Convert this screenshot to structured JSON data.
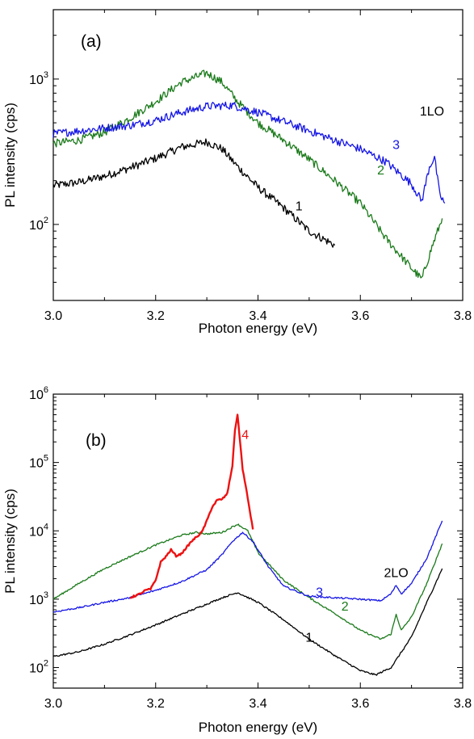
{
  "colors": {
    "axis": "#000000",
    "series_1": "#000000",
    "series_2": "#1a7a1a",
    "series_3": "#1515e6",
    "series_4": "#ee1111"
  },
  "chart_data": [
    {
      "type": "line",
      "panel_label": "(a)",
      "xlabel": "Photon energy (eV)",
      "ylabel": "PL intensity (cps)",
      "xlim": [
        3.0,
        3.8
      ],
      "ylim": [
        30,
        3000
      ],
      "yscale": "log",
      "grid": false,
      "xticks": [
        "3.0",
        "3.2",
        "3.4",
        "3.6",
        "3.8"
      ],
      "yticks": [
        {
          "base": "10",
          "exp": "2"
        },
        {
          "base": "10",
          "exp": "3"
        }
      ],
      "annotations": [
        {
          "text": "1LO",
          "x": 3.74,
          "y": 560,
          "series": "3"
        }
      ],
      "series": [
        {
          "name": "1",
          "label_at": {
            "x": 3.48,
            "y": 125
          },
          "x": [
            3.0,
            3.05,
            3.1,
            3.15,
            3.2,
            3.25,
            3.3,
            3.33,
            3.36,
            3.4,
            3.45,
            3.5,
            3.55
          ],
          "y": [
            185,
            195,
            215,
            245,
            285,
            340,
            370,
            330,
            250,
            180,
            130,
            90,
            72
          ]
        },
        {
          "name": "2",
          "label_at": {
            "x": 3.64,
            "y": 220
          },
          "x": [
            3.0,
            3.05,
            3.1,
            3.15,
            3.2,
            3.25,
            3.3,
            3.33,
            3.36,
            3.4,
            3.45,
            3.5,
            3.55,
            3.6,
            3.65,
            3.7,
            3.72,
            3.74,
            3.76
          ],
          "y": [
            360,
            380,
            430,
            540,
            700,
            950,
            1100,
            950,
            700,
            500,
            380,
            280,
            200,
            140,
            80,
            50,
            42,
            70,
            110
          ]
        },
        {
          "name": "3",
          "label_at": {
            "x": 3.67,
            "y": 330
          },
          "x": [
            3.0,
            3.05,
            3.1,
            3.15,
            3.2,
            3.25,
            3.3,
            3.35,
            3.4,
            3.45,
            3.5,
            3.55,
            3.6,
            3.65,
            3.7,
            3.72,
            3.735,
            3.745,
            3.755,
            3.765
          ],
          "y": [
            420,
            440,
            460,
            480,
            520,
            590,
            650,
            660,
            590,
            510,
            440,
            380,
            330,
            270,
            190,
            145,
            250,
            290,
            160,
            140
          ]
        }
      ]
    },
    {
      "type": "line",
      "panel_label": "(b)",
      "xlabel": "Photon energy (eV)",
      "ylabel": "PL intensity (cps)",
      "xlim": [
        3.0,
        3.8
      ],
      "ylim": [
        50,
        1000000
      ],
      "yscale": "log",
      "grid": false,
      "xticks": [
        "3.0",
        "3.2",
        "3.4",
        "3.6",
        "3.8"
      ],
      "yticks": [
        {
          "base": "10",
          "exp": "2"
        },
        {
          "base": "10",
          "exp": "3"
        },
        {
          "base": "10",
          "exp": "4"
        },
        {
          "base": "10",
          "exp": "5"
        },
        {
          "base": "10",
          "exp": "6"
        }
      ],
      "annotations": [
        {
          "text": "2LO",
          "x": 3.67,
          "y": 2100,
          "series": "3"
        }
      ],
      "series": [
        {
          "name": "1",
          "label_at": {
            "x": 3.5,
            "y": 240
          },
          "x": [
            3.0,
            3.05,
            3.1,
            3.15,
            3.2,
            3.25,
            3.3,
            3.33,
            3.36,
            3.4,
            3.45,
            3.5,
            3.55,
            3.6,
            3.63,
            3.66,
            3.7,
            3.73,
            3.76
          ],
          "y": [
            145,
            170,
            220,
            300,
            420,
            600,
            850,
            1050,
            1250,
            900,
            500,
            260,
            150,
            90,
            78,
            100,
            280,
            900,
            2800
          ]
        },
        {
          "name": "2",
          "label_at": {
            "x": 3.57,
            "y": 680
          },
          "x": [
            3.0,
            3.05,
            3.1,
            3.15,
            3.2,
            3.25,
            3.28,
            3.3,
            3.33,
            3.36,
            3.38,
            3.4,
            3.45,
            3.5,
            3.55,
            3.6,
            3.64,
            3.66,
            3.67,
            3.68,
            3.7,
            3.73,
            3.76
          ],
          "y": [
            1000,
            1700,
            2800,
            4200,
            6200,
            8600,
            9500,
            9000,
            9500,
            12500,
            10000,
            4800,
            1900,
            1050,
            620,
            350,
            260,
            310,
            600,
            350,
            550,
            1700,
            6500
          ]
        },
        {
          "name": "3",
          "label_at": {
            "x": 3.52,
            "y": 1100
          },
          "x": [
            3.0,
            3.05,
            3.1,
            3.15,
            3.2,
            3.25,
            3.3,
            3.33,
            3.35,
            3.37,
            3.39,
            3.42,
            3.45,
            3.5,
            3.55,
            3.6,
            3.64,
            3.66,
            3.67,
            3.68,
            3.7,
            3.73,
            3.76
          ],
          "y": [
            650,
            750,
            900,
            1050,
            1350,
            1800,
            2700,
            4500,
            7000,
            9500,
            7000,
            3000,
            1550,
            1100,
            1050,
            1000,
            950,
            1200,
            1600,
            1200,
            1700,
            4000,
            14000
          ]
        },
        {
          "name": "4",
          "label_at": {
            "x": 3.375,
            "y": 220000
          },
          "x": [
            3.15,
            3.17,
            3.18,
            3.19,
            3.2,
            3.21,
            3.22,
            3.23,
            3.24,
            3.25,
            3.27,
            3.29,
            3.3,
            3.31,
            3.32,
            3.33,
            3.34,
            3.35,
            3.355,
            3.36,
            3.365,
            3.37,
            3.38,
            3.39
          ],
          "y": [
            1050,
            1200,
            1350,
            1400,
            1900,
            3500,
            4200,
            5300,
            4300,
            4600,
            7000,
            9500,
            14000,
            22000,
            28000,
            29000,
            35000,
            90000,
            300000,
            500000,
            200000,
            80000,
            30000,
            10500
          ]
        }
      ]
    }
  ]
}
